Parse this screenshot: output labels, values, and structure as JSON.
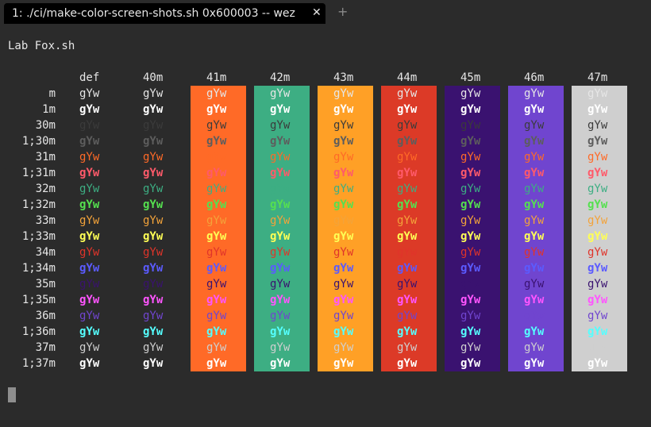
{
  "tab": {
    "title": "1: ./ci/make-color-screen-shots.sh 0x600003 -- wez",
    "close": "✕",
    "new_tab": "+"
  },
  "terminal": {
    "heading": "Lab Fox.sh",
    "headers": [
      "def",
      "40m",
      "41m",
      "42m",
      "43m",
      "44m",
      "45m",
      "46m",
      "47m"
    ],
    "row_labels": [
      "m",
      "1m",
      "30m",
      "1;30m",
      "31m",
      "1;31m",
      "32m",
      "1;32m",
      "33m",
      "1;33m",
      "34m",
      "1;34m",
      "35m",
      "1;35m",
      "36m",
      "1;36m",
      "37m",
      "1;37m"
    ],
    "sample_text": "gYw"
  },
  "colors": {
    "bg": [
      "",
      "",
      "#ff6a27",
      "#3dae83",
      "#ffa026",
      "#dc3a27",
      "#3a1270",
      "#7045cf",
      "#cfcfcf"
    ],
    "fg": [
      "#e6e6e6",
      "#ffffff",
      "#3b3b3b",
      "#5d5d5d",
      "#ff6a27",
      "#ff5a6a",
      "#3dae83",
      "#55e04f",
      "#f3a33a",
      "#ffff55",
      "#e0342a",
      "#5b5bff",
      "#3a1270",
      "#ff55ff",
      "#7045cf",
      "#55ffff",
      "#cfcfcf",
      "#ffffff"
    ]
  }
}
